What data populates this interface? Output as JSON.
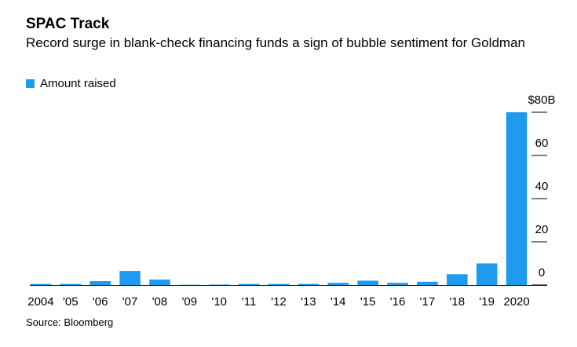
{
  "chart_data": {
    "type": "bar",
    "title": "SPAC Track",
    "subtitle": "Record surge in blank-check financing funds a sign of bubble sentiment for Goldman",
    "source": "Source: Bloomberg",
    "categories": [
      "2004",
      "'05",
      "'06",
      "'07",
      "'08",
      "'09",
      "'10",
      "'11",
      "'12",
      "'13",
      "'14",
      "'15",
      "'16",
      "'17",
      "'18",
      "'19",
      "2020"
    ],
    "series": [
      {
        "name": "Amount raised",
        "color": "#1e9bf0",
        "values": [
          0.5,
          0.5,
          1.8,
          6.5,
          2.5,
          0.1,
          0.2,
          0.5,
          0.5,
          0.5,
          1,
          2,
          1,
          1.5,
          5,
          10,
          80
        ]
      }
    ],
    "ylim": [
      0,
      80
    ],
    "yticks": [
      0,
      20,
      40,
      60,
      {
        "value": 80,
        "label": "$80B"
      }
    ],
    "legend": "top-left"
  }
}
